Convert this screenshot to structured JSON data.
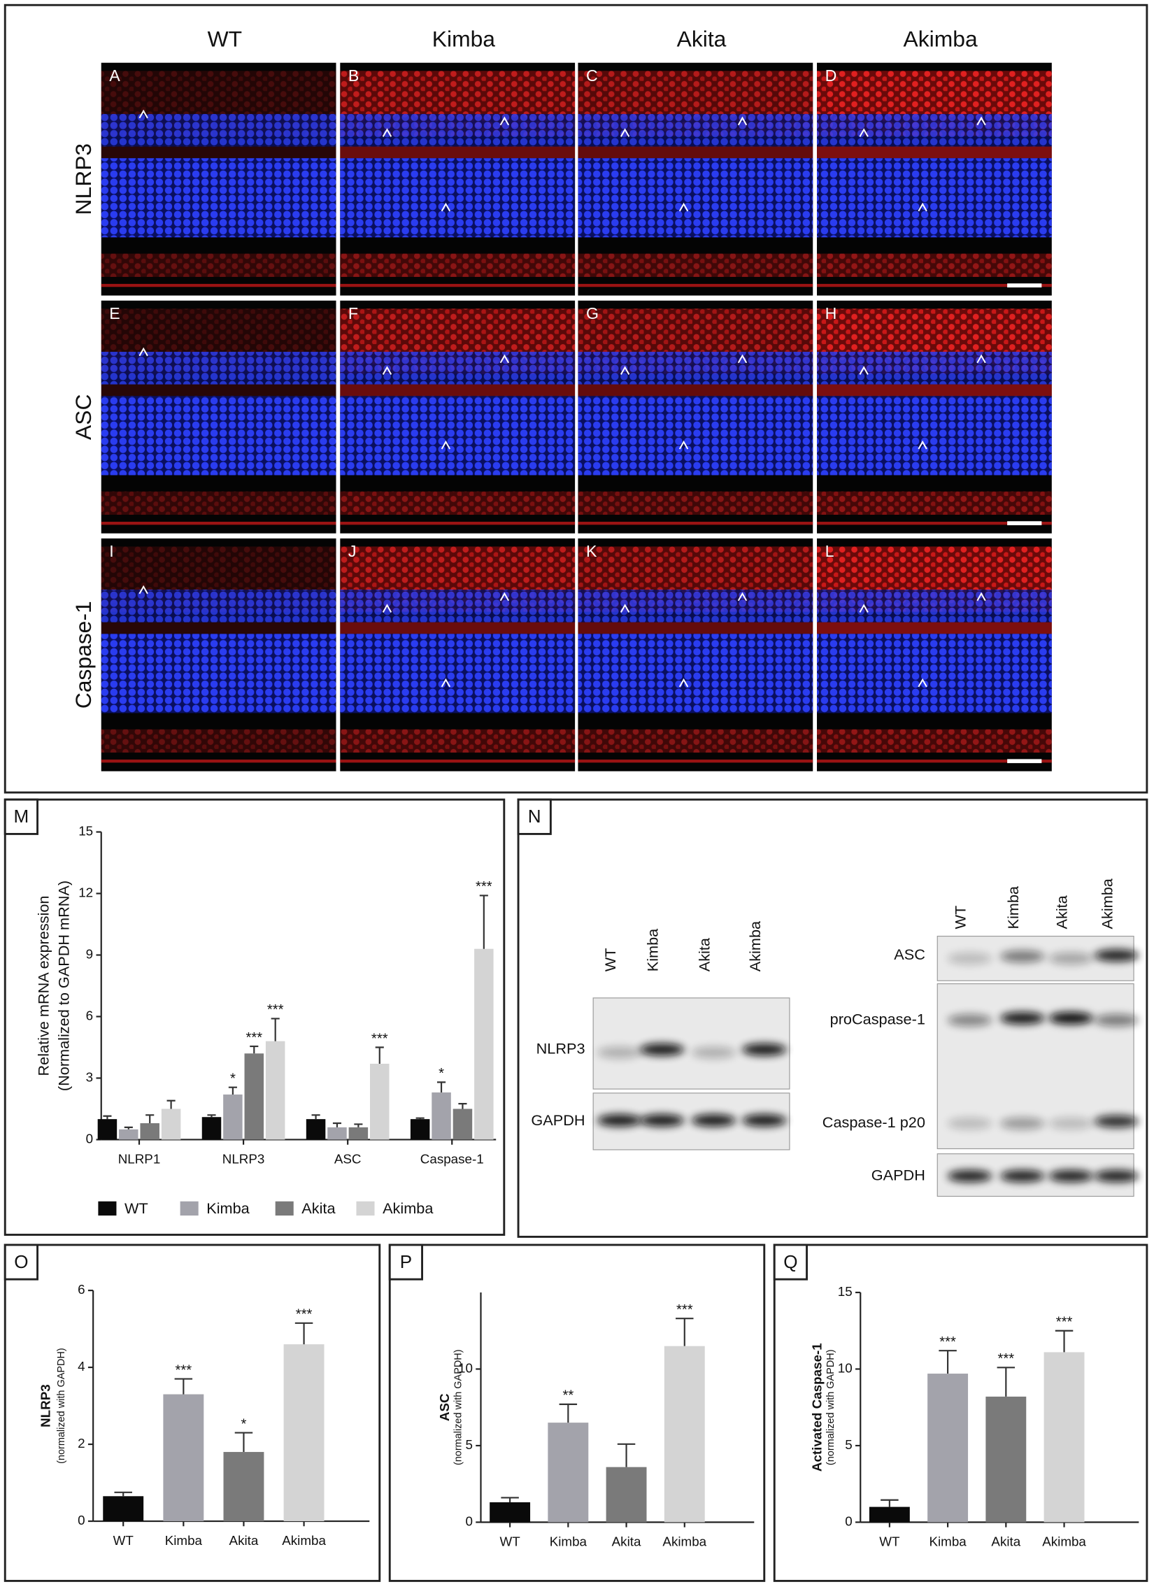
{
  "figure": {
    "column_headers": [
      "WT",
      "Kimba",
      "Akita",
      "Akimba"
    ],
    "row_labels": [
      "NLRP3",
      "ASC",
      "Caspase-1"
    ],
    "panel_labels": [
      "A",
      "B",
      "C",
      "D",
      "E",
      "F",
      "G",
      "H",
      "I",
      "J",
      "K",
      "L"
    ]
  },
  "western_blot": {
    "panel": "N",
    "left": {
      "lanes": [
        "WT",
        "Kimba",
        "Akita",
        "Akimba"
      ],
      "rows": [
        "NLRP3",
        "GAPDH"
      ]
    },
    "right": {
      "lanes": [
        "WT",
        "Kimba",
        "Akita",
        "Akimba"
      ],
      "rows": [
        "ASC",
        "proCaspase-1",
        "Caspase-1 p20",
        "GAPDH"
      ]
    }
  },
  "chart_data": [
    {
      "type": "bar",
      "panel": "M",
      "ylabel": "Relative mRNA expression",
      "ylabel_note": "(Normalized to GAPDH mRNA)",
      "categories": [
        "NLRP1",
        "NLRP3",
        "ASC",
        "Caspase-1"
      ],
      "series": [
        {
          "name": "WT",
          "color": "#0a0a0a",
          "values": [
            1.0,
            1.1,
            1.0,
            1.0
          ],
          "errors": [
            0.15,
            0.1,
            0.2,
            0.05
          ],
          "significance": [
            null,
            null,
            null,
            null
          ]
        },
        {
          "name": "Kimba",
          "color": "#a3a3ab",
          "values": [
            0.5,
            2.2,
            0.6,
            2.3
          ],
          "errors": [
            0.1,
            0.35,
            0.2,
            0.5
          ],
          "significance": [
            null,
            "*",
            null,
            "*"
          ]
        },
        {
          "name": "Akita",
          "color": "#7a7a7a",
          "values": [
            0.8,
            4.2,
            0.6,
            1.5
          ],
          "errors": [
            0.4,
            0.35,
            0.15,
            0.25
          ],
          "significance": [
            null,
            "***",
            null,
            null
          ]
        },
        {
          "name": "Akimba",
          "color": "#d4d4d4",
          "values": [
            1.5,
            4.8,
            3.7,
            9.3
          ],
          "errors": [
            0.4,
            1.1,
            0.8,
            2.6
          ],
          "significance": [
            null,
            "***",
            "***",
            "***"
          ]
        }
      ],
      "ylim": [
        0,
        15
      ],
      "yticks": [
        0,
        3,
        6,
        9,
        12,
        15
      ],
      "legend": "bottom"
    },
    {
      "type": "bar",
      "panel": "O",
      "ylabel": "NLRP3",
      "ylabel_note": "(normalized with GAPDH)",
      "categories": [
        "WT",
        "Kimba",
        "Akita",
        "Akimba"
      ],
      "values": [
        0.65,
        3.3,
        1.8,
        4.6
      ],
      "errors": [
        0.1,
        0.4,
        0.5,
        0.55
      ],
      "significance": [
        null,
        "***",
        "*",
        "***"
      ],
      "colors": [
        "#0a0a0a",
        "#a3a3ab",
        "#7a7a7a",
        "#d4d4d4"
      ],
      "ylim": [
        0,
        6
      ],
      "yticks": [
        0,
        2,
        4,
        6
      ]
    },
    {
      "type": "bar",
      "panel": "P",
      "ylabel": "ASC",
      "ylabel_note": "(normalized with GAPDH)",
      "categories": [
        "WT",
        "Kimba",
        "Akita",
        "Akimba"
      ],
      "values": [
        1.3,
        6.5,
        3.6,
        11.5
      ],
      "errors": [
        0.3,
        1.2,
        1.5,
        1.8
      ],
      "significance": [
        null,
        "**",
        null,
        "***"
      ],
      "colors": [
        "#0a0a0a",
        "#a3a3ab",
        "#7a7a7a",
        "#d4d4d4"
      ],
      "ylim": [
        0,
        15
      ],
      "yticks": [
        0,
        5,
        10
      ]
    },
    {
      "type": "bar",
      "panel": "Q",
      "ylabel": "Activated Caspase-1",
      "ylabel_note": "(normalized with GAPDH)",
      "categories": [
        "WT",
        "Kimba",
        "Akita",
        "Akimba"
      ],
      "values": [
        1.0,
        9.7,
        8.2,
        11.1
      ],
      "errors": [
        0.45,
        1.5,
        1.9,
        1.4
      ],
      "significance": [
        null,
        "***",
        "***",
        "***"
      ],
      "colors": [
        "#0a0a0a",
        "#a3a3ab",
        "#7a7a7a",
        "#d4d4d4"
      ],
      "ylim": [
        0,
        15
      ],
      "yticks": [
        0,
        5,
        10,
        15
      ]
    }
  ]
}
